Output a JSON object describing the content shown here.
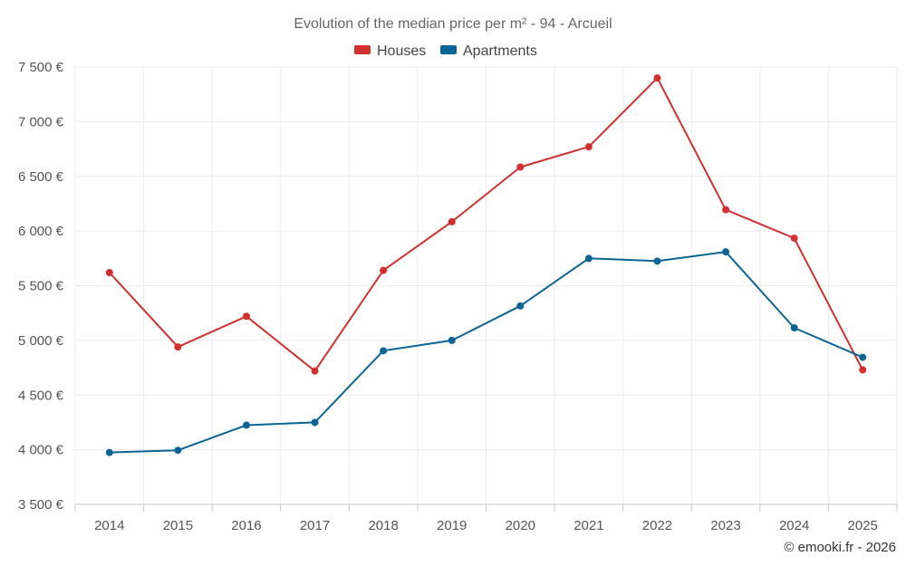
{
  "chart_data": {
    "type": "line",
    "title": "Evolution of the median price per m² - 94 - Arcueil",
    "categories": [
      "2014",
      "2015",
      "2016",
      "2017",
      "2018",
      "2019",
      "2020",
      "2021",
      "2022",
      "2023",
      "2024",
      "2025"
    ],
    "series": [
      {
        "name": "Houses",
        "color": "#d32f2f",
        "values": [
          5620,
          4940,
          5220,
          4720,
          5640,
          6085,
          6585,
          6770,
          7400,
          6195,
          5935,
          4730
        ]
      },
      {
        "name": "Apartments",
        "color": "#0b6494",
        "values": [
          3975,
          3995,
          4225,
          4250,
          4905,
          5000,
          5315,
          5750,
          5725,
          5810,
          5115,
          4845
        ]
      }
    ],
    "ylim": [
      3500,
      7500
    ],
    "yticks": [
      3500,
      4000,
      4500,
      5000,
      5500,
      6000,
      6500,
      7000,
      7500
    ],
    "ytick_labels": [
      "3 500 €",
      "4 000 €",
      "4 500 €",
      "5 000 €",
      "5 500 €",
      "6 000 €",
      "6 500 €",
      "7 000 €",
      "7 500 €"
    ],
    "xlabel": "",
    "ylabel": "",
    "grid": true,
    "legend_position": "top-center"
  },
  "credit": "© emooki.fr - 2026"
}
